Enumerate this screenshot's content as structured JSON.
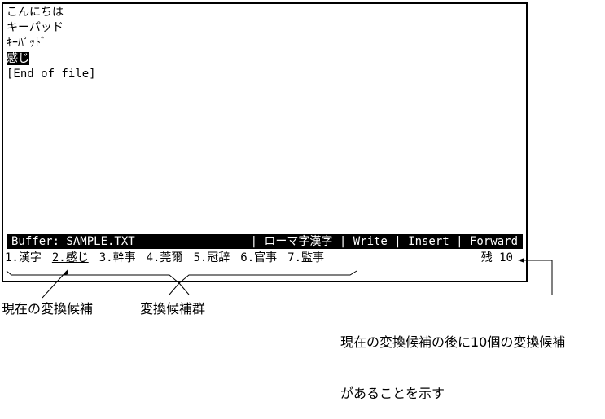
{
  "buffer_lines": [
    "こんにちは",
    "キーパッド",
    "ｷｰﾊﾟｯﾄﾞ",
    "感じ",
    "[End of file]"
  ],
  "status": {
    "buffer": "Buffer: SAMPLE.TXT",
    "modes": "| ローマ字漢字 | Write | Insert | Forward"
  },
  "candidates": [
    "1.漢字",
    "2.感じ",
    "3.幹事",
    "4.莞爾",
    "5.冠辞",
    "6.官事",
    "7.監事"
  ],
  "current_candidate_index": 1,
  "remaining": "残 10",
  "annotations": {
    "current": "現在の変換候補",
    "group": "変換候補群",
    "remaining_line1": "現在の変換候補の後に10個の変換候補",
    "remaining_line2": "があることを示す"
  }
}
